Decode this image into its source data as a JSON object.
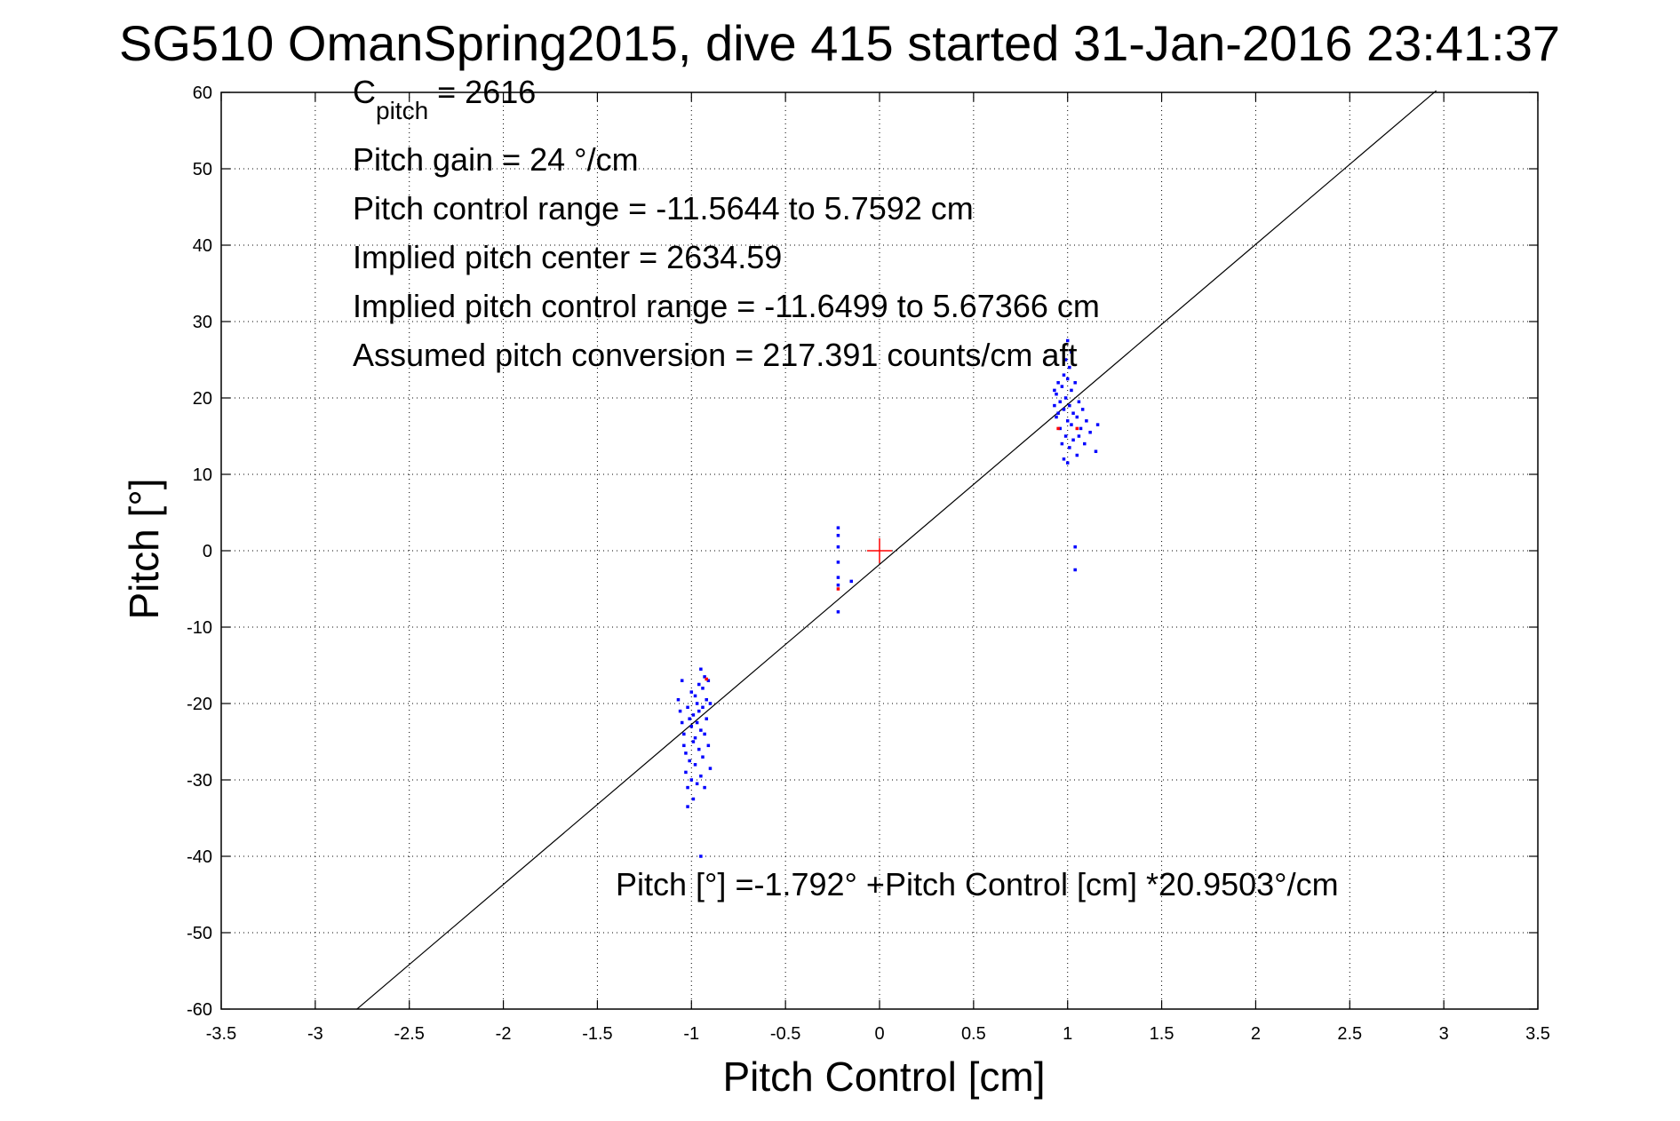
{
  "chart_data": {
    "type": "scatter",
    "title": "SG510 OmanSpring2015, dive 415 started 31-Jan-2016 23:41:37",
    "xlabel": "Pitch Control [cm]",
    "ylabel": "Pitch [°]",
    "xlim": [
      -3.5,
      3.5
    ],
    "ylim": [
      -60,
      60
    ],
    "xticks": [
      -3.5,
      -3,
      -2.5,
      -2,
      -1.5,
      -1,
      -0.5,
      0,
      0.5,
      1,
      1.5,
      2,
      2.5,
      3,
      3.5
    ],
    "xtick_labels": [
      "-3.5",
      "-3",
      "-2.5",
      "-2",
      "-1.5",
      "-1",
      "-0.5",
      "0",
      "0.5",
      "1",
      "1.5",
      "2",
      "2.5",
      "3",
      "3.5"
    ],
    "yticks": [
      -60,
      -50,
      -40,
      -30,
      -20,
      -10,
      0,
      10,
      20,
      30,
      40,
      50,
      60
    ],
    "ytick_labels": [
      "-60",
      "-50",
      "-40",
      "-30",
      "-20",
      "-10",
      "0",
      "10",
      "20",
      "30",
      "40",
      "50",
      "60"
    ],
    "grid": true,
    "colors": {
      "data": "#0000ff",
      "flagged": "#ff0000",
      "center_marker": "#ff0000",
      "fit_line": "#000000"
    },
    "annotations": {
      "c_pitch_main": "C",
      "c_pitch_sub": "pitch",
      "c_pitch_value": " = 2616",
      "pitch_gain": "Pitch gain = 24 °/cm",
      "control_range": "Pitch control range = -11.5644 to 5.7592 cm",
      "implied_center": "Implied pitch center = 2634.59",
      "implied_range": "Implied pitch control range = -11.6499 to 5.67366 cm",
      "conversion": "Assumed pitch conversion = 217.391 counts/cm aft",
      "fit_equation": "Pitch [°] =-1.792° +Pitch Control [cm] *20.9503°/cm"
    },
    "fit_line": {
      "intercept": -1.792,
      "slope": 20.9503,
      "x": [
        -2.78,
        2.96
      ]
    },
    "center_marker": {
      "x": 0,
      "y": 0
    },
    "series": [
      {
        "values": [
          {
            "x": -1.07,
            "y": -19.5
          },
          {
            "x": -1.06,
            "y": -21.0
          },
          {
            "x": -1.05,
            "y": -22.5
          },
          {
            "x": -1.05,
            "y": -17.0
          },
          {
            "x": -1.04,
            "y": -24.0
          },
          {
            "x": -1.04,
            "y": -25.5
          },
          {
            "x": -1.03,
            "y": -26.5
          },
          {
            "x": -1.03,
            "y": -29.0
          },
          {
            "x": -1.02,
            "y": -31.0
          },
          {
            "x": -1.02,
            "y": -33.5
          },
          {
            "x": -1.02,
            "y": -20.5
          },
          {
            "x": -1.01,
            "y": -22.0
          },
          {
            "x": -1.01,
            "y": -27.5
          },
          {
            "x": -1.0,
            "y": -18.5
          },
          {
            "x": -1.0,
            "y": -23.0
          },
          {
            "x": -1.0,
            "y": -30.0
          },
          {
            "x": -0.99,
            "y": -21.5
          },
          {
            "x": -0.99,
            "y": -32.5
          },
          {
            "x": -0.99,
            "y": -25.0
          },
          {
            "x": -0.98,
            "y": -19.0
          },
          {
            "x": -0.98,
            "y": -24.5
          },
          {
            "x": -0.98,
            "y": -28.0
          },
          {
            "x": -0.97,
            "y": -20.0
          },
          {
            "x": -0.97,
            "y": -22.5
          },
          {
            "x": -0.97,
            "y": -30.5
          },
          {
            "x": -0.96,
            "y": -17.5
          },
          {
            "x": -0.96,
            "y": -26.0
          },
          {
            "x": -0.96,
            "y": -21.0
          },
          {
            "x": -0.95,
            "y": -15.5
          },
          {
            "x": -0.95,
            "y": -23.5
          },
          {
            "x": -0.95,
            "y": -29.5
          },
          {
            "x": -0.95,
            "y": -40.0
          },
          {
            "x": -0.94,
            "y": -18.0
          },
          {
            "x": -0.94,
            "y": -27.0
          },
          {
            "x": -0.94,
            "y": -20.5
          },
          {
            "x": -0.93,
            "y": -16.5
          },
          {
            "x": -0.93,
            "y": -24.0
          },
          {
            "x": -0.93,
            "y": -31.0
          },
          {
            "x": -0.92,
            "y": -19.5
          },
          {
            "x": -0.92,
            "y": -22.0
          },
          {
            "x": -0.91,
            "y": -17.0
          },
          {
            "x": -0.91,
            "y": -25.5
          },
          {
            "x": -0.9,
            "y": -20.0
          },
          {
            "x": -0.9,
            "y": -28.5
          },
          {
            "x": -0.22,
            "y": 3.0
          },
          {
            "x": -0.22,
            "y": 2.0
          },
          {
            "x": -0.22,
            "y": 0.5
          },
          {
            "x": -0.22,
            "y": -1.5
          },
          {
            "x": -0.22,
            "y": -3.5
          },
          {
            "x": -0.22,
            "y": -4.5
          },
          {
            "x": -0.22,
            "y": -8.0
          },
          {
            "x": -0.15,
            "y": -4.0
          },
          {
            "x": 0.93,
            "y": 19.0
          },
          {
            "x": 0.93,
            "y": 21.0
          },
          {
            "x": 0.94,
            "y": 17.5
          },
          {
            "x": 0.94,
            "y": 20.5
          },
          {
            "x": 0.95,
            "y": 22.0
          },
          {
            "x": 0.95,
            "y": 18.0
          },
          {
            "x": 0.96,
            "y": 19.5
          },
          {
            "x": 0.96,
            "y": 16.0
          },
          {
            "x": 0.97,
            "y": 21.5
          },
          {
            "x": 0.97,
            "y": 14.0
          },
          {
            "x": 0.98,
            "y": 23.0
          },
          {
            "x": 0.98,
            "y": 18.5
          },
          {
            "x": 0.98,
            "y": 12.0
          },
          {
            "x": 0.99,
            "y": 25.0
          },
          {
            "x": 0.99,
            "y": 20.0
          },
          {
            "x": 0.99,
            "y": 15.0
          },
          {
            "x": 1.0,
            "y": 27.5
          },
          {
            "x": 1.0,
            "y": 22.5
          },
          {
            "x": 1.0,
            "y": 17.0
          },
          {
            "x": 1.0,
            "y": 11.5
          },
          {
            "x": 1.01,
            "y": 24.0
          },
          {
            "x": 1.01,
            "y": 19.0
          },
          {
            "x": 1.01,
            "y": 13.5
          },
          {
            "x": 1.02,
            "y": 21.0
          },
          {
            "x": 1.02,
            "y": 16.5
          },
          {
            "x": 1.02,
            "y": 26.0
          },
          {
            "x": 1.03,
            "y": 18.0
          },
          {
            "x": 1.03,
            "y": 14.5
          },
          {
            "x": 1.04,
            "y": 22.0
          },
          {
            "x": 1.04,
            "y": 0.5
          },
          {
            "x": 1.04,
            "y": -2.5
          },
          {
            "x": 1.05,
            "y": 17.5
          },
          {
            "x": 1.05,
            "y": 12.5
          },
          {
            "x": 1.06,
            "y": 19.5
          },
          {
            "x": 1.06,
            "y": 15.0
          },
          {
            "x": 1.07,
            "y": 16.0
          },
          {
            "x": 1.08,
            "y": 18.5
          },
          {
            "x": 1.09,
            "y": 14.0
          },
          {
            "x": 1.1,
            "y": 17.0
          },
          {
            "x": 1.12,
            "y": 15.5
          },
          {
            "x": 1.15,
            "y": 13.0
          },
          {
            "x": 1.16,
            "y": 16.5
          }
        ]
      },
      {
        "values": [
          {
            "x": -0.92,
            "y": -16.8
          },
          {
            "x": -0.22,
            "y": -5.0
          },
          {
            "x": 0.95,
            "y": 16.0
          },
          {
            "x": 1.05,
            "y": 16.0
          }
        ]
      }
    ]
  }
}
